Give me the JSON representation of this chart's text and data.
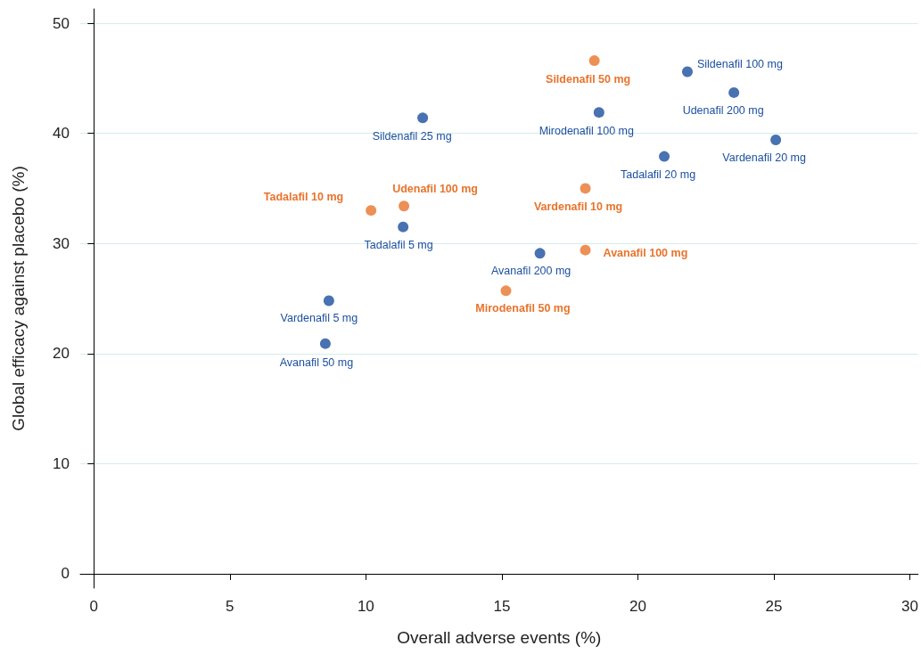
{
  "chart_data": {
    "type": "scatter",
    "xlabel": "Overall adverse events (%)",
    "ylabel": "Global efficacy against placebo (%)",
    "xlim": [
      -0.5,
      30.3
    ],
    "ylim": [
      -1.3,
      51.3
    ],
    "xticks": [
      0,
      5,
      10,
      15,
      20,
      25,
      30
    ],
    "yticks": [
      0,
      10,
      20,
      30,
      40,
      50
    ],
    "grid": "y",
    "marker": "circle",
    "series": [
      {
        "color": "#1a4f9e",
        "x": [
          21.82,
          23.53,
          18.57,
          12.09,
          25.07,
          20.97,
          11.37,
          16.4,
          8.64,
          8.51
        ],
        "values": [
          45.6,
          43.7,
          41.9,
          41.4,
          39.4,
          37.9,
          31.5,
          29.1,
          24.8,
          20.9
        ]
      },
      {
        "color": "#e8742c",
        "x": [
          18.4,
          18.07,
          11.4,
          10.19,
          18.07,
          15.15
        ],
        "values": [
          46.6,
          35.0,
          33.4,
          33.0,
          29.4,
          25.7
        ]
      }
    ],
    "annotations": [
      {
        "text": "Sildenafil 100 mg",
        "x": 21.82,
        "y": 45.6
      },
      {
        "text": "Sildenafil 50 mg",
        "x": 18.4,
        "y": 46.6
      },
      {
        "text": "Udenafil 200 mg",
        "x": 23.53,
        "y": 43.7
      },
      {
        "text": "Mirodenafil 100 mg",
        "x": 18.57,
        "y": 41.9
      },
      {
        "text": "Sildenafil 25 mg",
        "x": 12.09,
        "y": 41.4
      },
      {
        "text": "Vardenafil 20 mg",
        "x": 25.07,
        "y": 39.4
      },
      {
        "text": "Tadalafil 20 mg",
        "x": 20.97,
        "y": 37.9
      },
      {
        "text": "Vardenafil 10 mg",
        "x": 18.07,
        "y": 35.0
      },
      {
        "text": "Udenafil 100 mg",
        "x": 11.4,
        "y": 33.4
      },
      {
        "text": "Tadalafil 10 mg",
        "x": 10.19,
        "y": 33.0
      },
      {
        "text": "Tadalafil 5 mg",
        "x": 11.37,
        "y": 31.5
      },
      {
        "text": "Avanafil 200 mg",
        "x": 16.4,
        "y": 29.1
      },
      {
        "text": "Avanafil 100 mg",
        "x": 18.07,
        "y": 29.4
      },
      {
        "text": "Mirodenafil 50 mg",
        "x": 15.15,
        "y": 25.7
      },
      {
        "text": "Vardenafil 5 mg",
        "x": 8.64,
        "y": 24.8
      },
      {
        "text": "Avanafil 50 mg",
        "x": 8.51,
        "y": 20.9
      }
    ]
  }
}
